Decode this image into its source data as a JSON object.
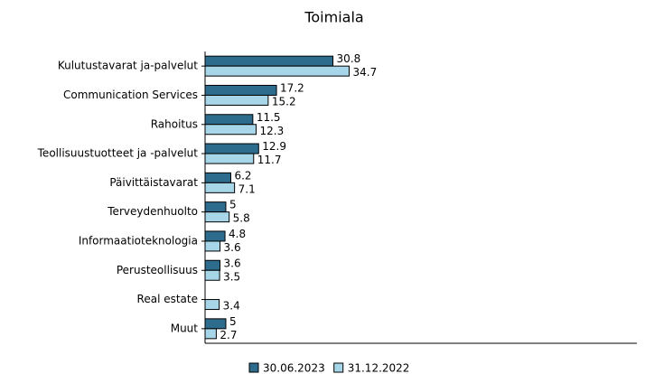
{
  "chart_data": {
    "type": "hbar",
    "title": "Toimiala",
    "categories": [
      "Kulutustavarat ja-palvelut",
      "Communication Services",
      "Rahoitus",
      "Teollisuustuotteet ja -palvelut",
      "Päivittäistavarat",
      "Terveydenhuolto",
      "Informaatioteknologia",
      "Perusteollisuus",
      "Real estate",
      "Muut"
    ],
    "series": [
      {
        "name": "30.06.2023",
        "color": "#2d6c8c",
        "values": [
          30.8,
          17.2,
          11.5,
          12.9,
          6.2,
          5,
          4.8,
          3.6,
          null,
          5
        ]
      },
      {
        "name": "31.12.2022",
        "color": "#a6d6e8",
        "values": [
          34.7,
          15.2,
          12.3,
          11.7,
          7.1,
          5.8,
          3.6,
          3.5,
          3.4,
          2.7
        ]
      }
    ],
    "xlim": [
      0,
      104
    ]
  }
}
